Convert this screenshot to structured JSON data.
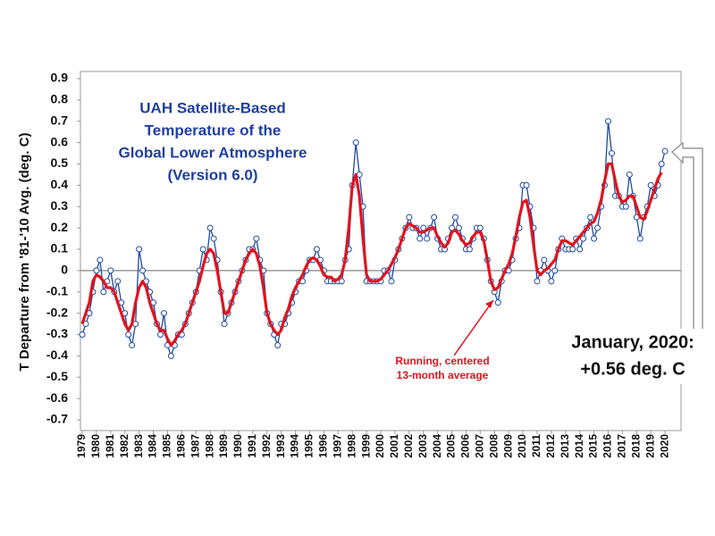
{
  "chart_data": {
    "type": "line",
    "title": [
      "UAH Satellite-Based",
      "Temperature of the",
      "Global Lower Atmosphere",
      "(Version 6.0)"
    ],
    "y_label": "T Departure from '81-'10 Avg. (deg. C)",
    "annotation": [
      "Running, centered",
      "13-month average"
    ],
    "callout": [
      "January, 2020:",
      "+0.56 deg. C"
    ],
    "xlim": [
      1979,
      2021
    ],
    "ylim": [
      -0.7,
      0.9
    ],
    "xticks": [
      1979,
      1980,
      1981,
      1982,
      1983,
      1984,
      1985,
      1986,
      1987,
      1988,
      1989,
      1990,
      1991,
      1992,
      1993,
      1994,
      1995,
      1996,
      1997,
      1998,
      1999,
      2000,
      2001,
      2002,
      2003,
      2004,
      2005,
      2006,
      2007,
      2008,
      2009,
      2010,
      2011,
      2012,
      2013,
      2014,
      2015,
      2016,
      2017,
      2018,
      2019,
      2020
    ],
    "yticks": [
      -0.7,
      -0.6,
      -0.5,
      -0.4,
      -0.3,
      -0.2,
      -0.1,
      0,
      0.1,
      0.2,
      0.3,
      0.4,
      0.5,
      0.6,
      0.7,
      0.8,
      0.9
    ],
    "x": [
      1979,
      1979.25,
      1979.5,
      1979.75,
      1980,
      1980.25,
      1980.5,
      1980.75,
      1981,
      1981.25,
      1981.5,
      1981.75,
      1982,
      1982.25,
      1982.5,
      1982.75,
      1983,
      1983.25,
      1983.5,
      1983.75,
      1984,
      1984.25,
      1984.5,
      1984.75,
      1985,
      1985.25,
      1985.5,
      1985.75,
      1986,
      1986.25,
      1986.5,
      1986.75,
      1987,
      1987.25,
      1987.5,
      1987.75,
      1988,
      1988.25,
      1988.5,
      1988.75,
      1989,
      1989.25,
      1989.5,
      1989.75,
      1990,
      1990.25,
      1990.5,
      1990.75,
      1991,
      1991.25,
      1991.5,
      1991.75,
      1992,
      1992.25,
      1992.5,
      1992.75,
      1993,
      1993.25,
      1993.5,
      1993.75,
      1994,
      1994.25,
      1994.5,
      1994.75,
      1995,
      1995.25,
      1995.5,
      1995.75,
      1996,
      1996.25,
      1996.5,
      1996.75,
      1997,
      1997.25,
      1997.5,
      1997.75,
      1998,
      1998.25,
      1998.5,
      1998.75,
      1999,
      1999.25,
      1999.5,
      1999.75,
      2000,
      2000.25,
      2000.5,
      2000.75,
      2001,
      2001.25,
      2001.5,
      2001.75,
      2002,
      2002.25,
      2002.5,
      2002.75,
      2003,
      2003.25,
      2003.5,
      2003.75,
      2004,
      2004.25,
      2004.5,
      2004.75,
      2005,
      2005.25,
      2005.5,
      2005.75,
      2006,
      2006.25,
      2006.5,
      2006.75,
      2007,
      2007.25,
      2007.5,
      2007.75,
      2008,
      2008.25,
      2008.5,
      2008.75,
      2009,
      2009.25,
      2009.5,
      2009.75,
      2010,
      2010.25,
      2010.5,
      2010.75,
      2011,
      2011.25,
      2011.5,
      2011.75,
      2012,
      2012.25,
      2012.5,
      2012.75,
      2013,
      2013.25,
      2013.5,
      2013.75,
      2014,
      2014.25,
      2014.5,
      2014.75,
      2015,
      2015.25,
      2015.5,
      2015.75,
      2016,
      2016.25,
      2016.5,
      2016.75,
      2017,
      2017.25,
      2017.5,
      2017.75,
      2018,
      2018.25,
      2018.5,
      2018.75,
      2019,
      2019.25,
      2019.5,
      2019.75,
      2020
    ],
    "series": [
      {
        "color": "#1f4aa0",
        "marker": "circle",
        "values": [
          -0.3,
          -0.25,
          -0.2,
          -0.1,
          0.0,
          0.05,
          -0.1,
          -0.05,
          0.0,
          -0.1,
          -0.05,
          -0.15,
          -0.2,
          -0.3,
          -0.35,
          -0.25,
          0.1,
          0.0,
          -0.05,
          -0.1,
          -0.15,
          -0.25,
          -0.3,
          -0.2,
          -0.35,
          -0.4,
          -0.35,
          -0.3,
          -0.3,
          -0.25,
          -0.2,
          -0.15,
          -0.1,
          0.0,
          0.1,
          0.05,
          0.2,
          0.15,
          0.05,
          -0.1,
          -0.25,
          -0.2,
          -0.15,
          -0.1,
          -0.05,
          0.0,
          0.05,
          0.1,
          0.1,
          0.15,
          0.05,
          0.0,
          -0.2,
          -0.25,
          -0.3,
          -0.35,
          -0.25,
          -0.25,
          -0.2,
          -0.15,
          -0.1,
          -0.05,
          -0.05,
          0.0,
          0.05,
          0.05,
          0.1,
          0.05,
          0.0,
          -0.05,
          -0.05,
          -0.05,
          -0.05,
          -0.05,
          0.05,
          0.1,
          0.4,
          0.6,
          0.45,
          0.3,
          -0.05,
          -0.05,
          -0.05,
          -0.05,
          -0.05,
          0.0,
          0.0,
          -0.05,
          0.05,
          0.1,
          0.15,
          0.2,
          0.25,
          0.2,
          0.2,
          0.15,
          0.2,
          0.15,
          0.2,
          0.25,
          0.15,
          0.1,
          0.1,
          0.15,
          0.2,
          0.25,
          0.2,
          0.15,
          0.1,
          0.1,
          0.15,
          0.2,
          0.2,
          0.15,
          0.05,
          -0.05,
          -0.1,
          -0.15,
          -0.05,
          0.0,
          0.0,
          0.05,
          0.15,
          0.2,
          0.4,
          0.4,
          0.3,
          0.2,
          -0.05,
          0.0,
          0.05,
          0.0,
          -0.05,
          0.0,
          0.1,
          0.15,
          0.1,
          0.1,
          0.1,
          0.15,
          0.1,
          0.15,
          0.2,
          0.25,
          0.15,
          0.2,
          0.3,
          0.4,
          0.7,
          0.55,
          0.35,
          0.35,
          0.3,
          0.3,
          0.45,
          0.35,
          0.25,
          0.15,
          0.25,
          0.3,
          0.4,
          0.35,
          0.4,
          0.5,
          0.56
        ]
      },
      {
        "color": "#e0141e",
        "values": [
          -0.25,
          -0.2,
          -0.15,
          -0.05,
          -0.02,
          -0.03,
          -0.05,
          -0.08,
          -0.08,
          -0.1,
          -0.15,
          -0.2,
          -0.25,
          -0.28,
          -0.25,
          -0.15,
          -0.08,
          -0.05,
          -0.08,
          -0.15,
          -0.2,
          -0.25,
          -0.28,
          -0.28,
          -0.32,
          -0.35,
          -0.33,
          -0.3,
          -0.28,
          -0.25,
          -0.2,
          -0.15,
          -0.1,
          -0.05,
          0.02,
          0.08,
          0.1,
          0.08,
          0.0,
          -0.1,
          -0.2,
          -0.2,
          -0.15,
          -0.1,
          -0.05,
          0.0,
          0.05,
          0.08,
          0.1,
          0.08,
          0.02,
          -0.08,
          -0.2,
          -0.25,
          -0.28,
          -0.3,
          -0.28,
          -0.22,
          -0.18,
          -0.12,
          -0.08,
          -0.05,
          -0.02,
          0.02,
          0.05,
          0.06,
          0.05,
          0.02,
          -0.02,
          -0.03,
          -0.03,
          -0.05,
          -0.04,
          -0.02,
          0.05,
          0.2,
          0.4,
          0.45,
          0.35,
          0.15,
          -0.02,
          -0.05,
          -0.05,
          -0.05,
          -0.04,
          -0.02,
          0.0,
          0.03,
          0.06,
          0.1,
          0.15,
          0.2,
          0.22,
          0.21,
          0.2,
          0.18,
          0.18,
          0.19,
          0.2,
          0.2,
          0.16,
          0.13,
          0.11,
          0.13,
          0.18,
          0.19,
          0.17,
          0.14,
          0.12,
          0.13,
          0.16,
          0.18,
          0.18,
          0.14,
          0.05,
          -0.05,
          -0.09,
          -0.08,
          -0.04,
          0.0,
          0.03,
          0.08,
          0.16,
          0.25,
          0.32,
          0.33,
          0.25,
          0.12,
          0.0,
          -0.02,
          0.0,
          0.01,
          0.03,
          0.05,
          0.1,
          0.14,
          0.14,
          0.13,
          0.12,
          0.14,
          0.16,
          0.18,
          0.2,
          0.22,
          0.23,
          0.27,
          0.33,
          0.42,
          0.5,
          0.5,
          0.42,
          0.35,
          0.32,
          0.33,
          0.35,
          0.35,
          0.3,
          0.25,
          0.24,
          0.28,
          0.33,
          0.38,
          0.43,
          0.46,
          null
        ]
      }
    ],
    "zero_line": true
  }
}
